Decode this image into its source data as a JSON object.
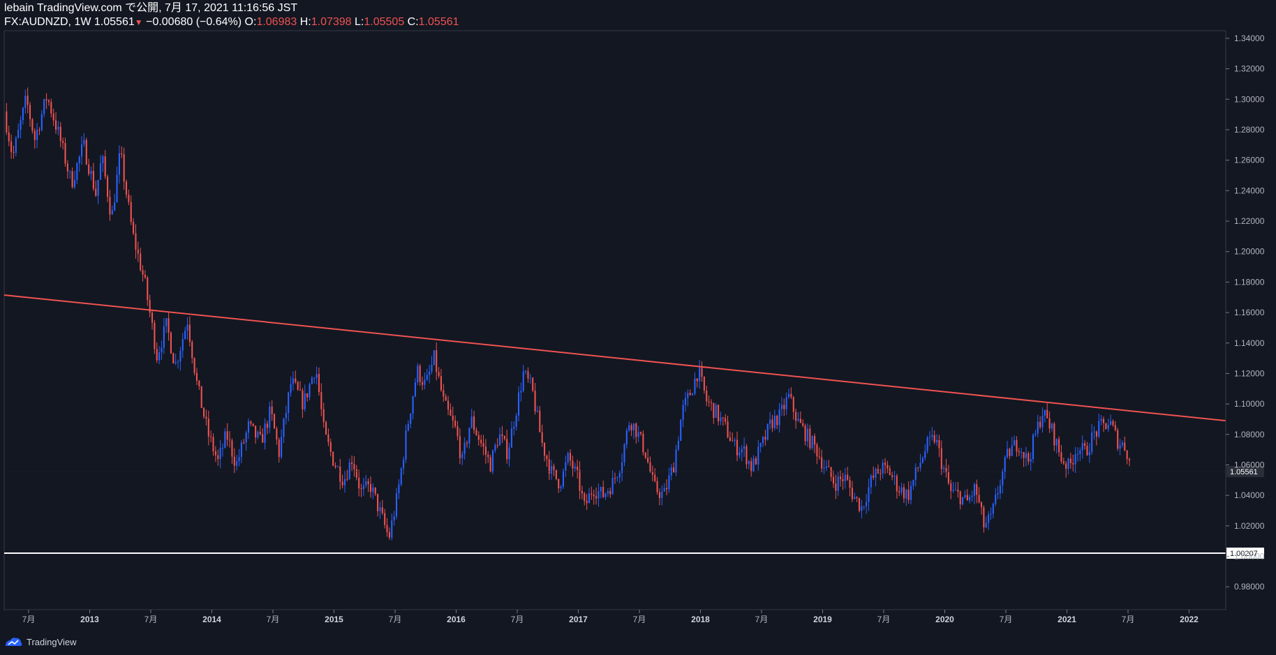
{
  "header": {
    "published": "lebain TradingView.com で公開, 7月 17, 2021 11:16:56 JST",
    "symbol": "FX:AUDNZD, 1W",
    "last": "1.05561",
    "change_arrow": "▼",
    "change": "−0.00680 (−0.64%)",
    "open_label": "O:",
    "open": "1.06983",
    "high_label": "H:",
    "high": "1.07398",
    "low_label": "L:",
    "low": "1.05505",
    "close_label": "C:",
    "close": "1.05561"
  },
  "footer": {
    "brand": "TradingView"
  },
  "colors": {
    "background": "#131722",
    "up": "#2962ff",
    "down": "#ef5350",
    "trendline": "#f05350",
    "support": "#ffffff"
  },
  "chart_data": {
    "type": "candlestick",
    "symbol": "FX:AUDNZD",
    "interval": "1W",
    "x_range": [
      2012.3,
      2022.3
    ],
    "ylim": [
      0.965,
      1.345
    ],
    "y_ticks": [
      "0.98000",
      "1.00000",
      "1.02000",
      "1.04000",
      "1.06000",
      "1.08000",
      "1.10000",
      "1.12000",
      "1.14000",
      "1.16000",
      "1.18000",
      "1.20000",
      "1.22000",
      "1.24000",
      "1.26000",
      "1.28000",
      "1.30000",
      "1.32000",
      "1.34000"
    ],
    "x_ticks": [
      {
        "t": 2012.5,
        "label": "7月",
        "bold": false
      },
      {
        "t": 2013.0,
        "label": "2013",
        "bold": true
      },
      {
        "t": 2013.5,
        "label": "7月",
        "bold": false
      },
      {
        "t": 2014.0,
        "label": "2014",
        "bold": true
      },
      {
        "t": 2014.5,
        "label": "7月",
        "bold": false
      },
      {
        "t": 2015.0,
        "label": "2015",
        "bold": true
      },
      {
        "t": 2015.5,
        "label": "7月",
        "bold": false
      },
      {
        "t": 2016.0,
        "label": "2016",
        "bold": true
      },
      {
        "t": 2016.5,
        "label": "7月",
        "bold": false
      },
      {
        "t": 2017.0,
        "label": "2017",
        "bold": true
      },
      {
        "t": 2017.5,
        "label": "7月",
        "bold": false
      },
      {
        "t": 2018.0,
        "label": "2018",
        "bold": true
      },
      {
        "t": 2018.5,
        "label": "7月",
        "bold": false
      },
      {
        "t": 2019.0,
        "label": "2019",
        "bold": true
      },
      {
        "t": 2019.5,
        "label": "7月",
        "bold": false
      },
      {
        "t": 2020.0,
        "label": "2020",
        "bold": true
      },
      {
        "t": 2020.5,
        "label": "7月",
        "bold": false
      },
      {
        "t": 2021.0,
        "label": "2021",
        "bold": true
      },
      {
        "t": 2021.5,
        "label": "7月",
        "bold": false
      },
      {
        "t": 2022.0,
        "label": "2022",
        "bold": true
      }
    ],
    "price_path": [
      [
        2012.3,
        1.292
      ],
      [
        2012.37,
        1.262
      ],
      [
        2012.48,
        1.3
      ],
      [
        2012.55,
        1.274
      ],
      [
        2012.65,
        1.302
      ],
      [
        2012.75,
        1.276
      ],
      [
        2012.85,
        1.245
      ],
      [
        2012.95,
        1.27
      ],
      [
        2013.05,
        1.238
      ],
      [
        2013.1,
        1.262
      ],
      [
        2013.18,
        1.222
      ],
      [
        2013.25,
        1.265
      ],
      [
        2013.35,
        1.212
      ],
      [
        2013.45,
        1.18
      ],
      [
        2013.55,
        1.132
      ],
      [
        2013.63,
        1.152
      ],
      [
        2013.7,
        1.125
      ],
      [
        2013.8,
        1.155
      ],
      [
        2013.88,
        1.112
      ],
      [
        2013.97,
        1.08
      ],
      [
        2014.05,
        1.062
      ],
      [
        2014.12,
        1.08
      ],
      [
        2014.2,
        1.06
      ],
      [
        2014.3,
        1.085
      ],
      [
        2014.4,
        1.075
      ],
      [
        2014.48,
        1.095
      ],
      [
        2014.55,
        1.068
      ],
      [
        2014.65,
        1.115
      ],
      [
        2014.75,
        1.1
      ],
      [
        2014.85,
        1.125
      ],
      [
        2014.92,
        1.08
      ],
      [
        2015.0,
        1.062
      ],
      [
        2015.08,
        1.05
      ],
      [
        2015.15,
        1.065
      ],
      [
        2015.22,
        1.042
      ],
      [
        2015.3,
        1.046
      ],
      [
        2015.38,
        1.028
      ],
      [
        2015.45,
        1.012
      ],
      [
        2015.52,
        1.04
      ],
      [
        2015.6,
        1.085
      ],
      [
        2015.68,
        1.122
      ],
      [
        2015.75,
        1.112
      ],
      [
        2015.82,
        1.13
      ],
      [
        2015.9,
        1.1
      ],
      [
        2016.0,
        1.082
      ],
      [
        2016.05,
        1.062
      ],
      [
        2016.12,
        1.09
      ],
      [
        2016.2,
        1.075
      ],
      [
        2016.28,
        1.06
      ],
      [
        2016.35,
        1.08
      ],
      [
        2016.42,
        1.068
      ],
      [
        2016.5,
        1.1
      ],
      [
        2016.55,
        1.12
      ],
      [
        2016.62,
        1.11
      ],
      [
        2016.7,
        1.075
      ],
      [
        2016.78,
        1.055
      ],
      [
        2016.85,
        1.048
      ],
      [
        2016.92,
        1.065
      ],
      [
        2017.0,
        1.05
      ],
      [
        2017.05,
        1.032
      ],
      [
        2017.12,
        1.045
      ],
      [
        2017.2,
        1.04
      ],
      [
        2017.28,
        1.048
      ],
      [
        2017.35,
        1.062
      ],
      [
        2017.42,
        1.09
      ],
      [
        2017.48,
        1.082
      ],
      [
        2017.55,
        1.068
      ],
      [
        2017.62,
        1.045
      ],
      [
        2017.7,
        1.04
      ],
      [
        2017.78,
        1.06
      ],
      [
        2017.85,
        1.095
      ],
      [
        2017.92,
        1.108
      ],
      [
        2017.98,
        1.122
      ],
      [
        2018.05,
        1.102
      ],
      [
        2018.12,
        1.095
      ],
      [
        2018.2,
        1.085
      ],
      [
        2018.28,
        1.072
      ],
      [
        2018.35,
        1.07
      ],
      [
        2018.42,
        1.058
      ],
      [
        2018.5,
        1.072
      ],
      [
        2018.58,
        1.088
      ],
      [
        2018.65,
        1.092
      ],
      [
        2018.72,
        1.105
      ],
      [
        2018.8,
        1.088
      ],
      [
        2018.88,
        1.078
      ],
      [
        2018.95,
        1.07
      ],
      [
        2019.02,
        1.058
      ],
      [
        2019.1,
        1.048
      ],
      [
        2019.18,
        1.052
      ],
      [
        2019.25,
        1.04
      ],
      [
        2019.32,
        1.032
      ],
      [
        2019.4,
        1.05
      ],
      [
        2019.48,
        1.058
      ],
      [
        2019.55,
        1.055
      ],
      [
        2019.62,
        1.045
      ],
      [
        2019.7,
        1.04
      ],
      [
        2019.78,
        1.058
      ],
      [
        2019.85,
        1.072
      ],
      [
        2019.92,
        1.078
      ],
      [
        2019.98,
        1.06
      ],
      [
        2020.05,
        1.042
      ],
      [
        2020.12,
        1.04
      ],
      [
        2020.18,
        1.035
      ],
      [
        2020.25,
        1.045
      ],
      [
        2020.32,
        1.02
      ],
      [
        2020.38,
        1.025
      ],
      [
        2020.45,
        1.048
      ],
      [
        2020.52,
        1.068
      ],
      [
        2020.6,
        1.075
      ],
      [
        2020.68,
        1.062
      ],
      [
        2020.75,
        1.082
      ],
      [
        2020.8,
        1.095
      ],
      [
        2020.88,
        1.082
      ],
      [
        2020.95,
        1.065
      ],
      [
        2021.02,
        1.058
      ],
      [
        2021.08,
        1.072
      ],
      [
        2021.15,
        1.068
      ],
      [
        2021.22,
        1.08
      ],
      [
        2021.28,
        1.085
      ],
      [
        2021.35,
        1.088
      ],
      [
        2021.42,
        1.075
      ],
      [
        2021.48,
        1.072
      ],
      [
        2021.53,
        1.056
      ]
    ],
    "annotations": [
      {
        "type": "trendline",
        "t1": 2012.3,
        "p1": 1.1715,
        "t2": 2022.3,
        "p2": 1.089
      },
      {
        "type": "horizontal_line",
        "price": 1.00207,
        "label": "1.00207"
      },
      {
        "type": "last_price",
        "price": 1.05561,
        "label": "1.05561"
      }
    ]
  }
}
